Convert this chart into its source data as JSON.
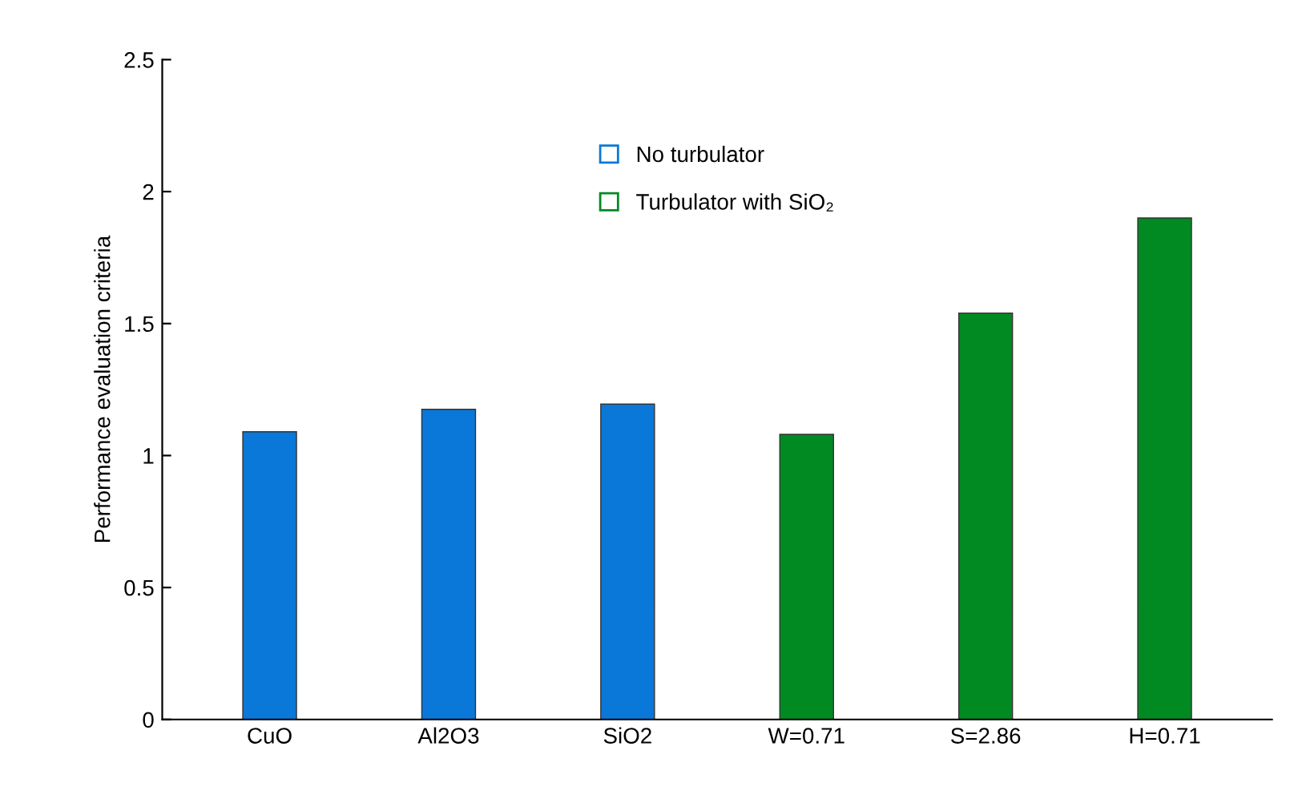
{
  "chart_data": {
    "type": "bar",
    "ylabel": "Performance evaluation criteria",
    "categories": [
      "CuO",
      "Al2O3",
      "SiO2",
      "W=0.71",
      "S=2.86",
      "H=0.71"
    ],
    "series": [
      {
        "name": "No turbulator",
        "color": "#0a78d8",
        "values": [
          1.09,
          1.175,
          1.195,
          null,
          null,
          null
        ]
      },
      {
        "name": "Turbulator with SiO₂",
        "color": "#028a22",
        "values": [
          null,
          null,
          null,
          1.08,
          1.54,
          1.9
        ]
      }
    ],
    "ylim": [
      0,
      2.5
    ],
    "yticks": [
      0,
      0.5,
      1,
      1.5,
      2,
      2.5
    ],
    "grid": false,
    "legend": "top"
  }
}
